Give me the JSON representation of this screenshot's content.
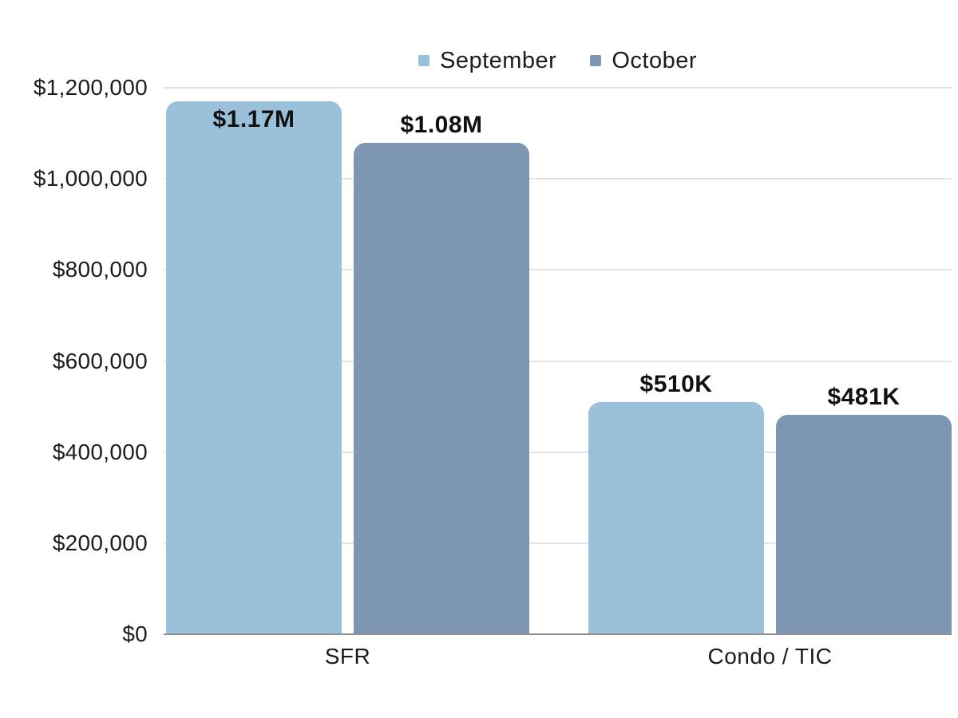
{
  "chart_data": {
    "type": "bar",
    "title": "",
    "categories": [
      "SFR",
      "Condo / TIC"
    ],
    "series": [
      {
        "name": "September",
        "color": "#9ac1d9",
        "values": [
          1170000,
          510000
        ],
        "data_labels": [
          "$1.17M",
          "$510K"
        ]
      },
      {
        "name": "October",
        "color": "#7d96b3",
        "values": [
          1080000,
          481000
        ],
        "data_labels": [
          "$1.08M",
          "$481K"
        ]
      }
    ],
    "y_axis": {
      "min": 0,
      "max": 1200000,
      "ticks": [
        {
          "value": 0,
          "label": "$0"
        },
        {
          "value": 200000,
          "label": "$200,000"
        },
        {
          "value": 400000,
          "label": "$400,000"
        },
        {
          "value": 600000,
          "label": "$600,000"
        },
        {
          "value": 800000,
          "label": "$800,000"
        },
        {
          "value": 1000000,
          "label": "$1,000,000"
        },
        {
          "value": 1200000,
          "label": "$1,200,000"
        }
      ]
    },
    "legend": {
      "position": "top",
      "entries": [
        "September",
        "October"
      ]
    },
    "grid": "horizontal",
    "colors": {
      "background": "#ffffff",
      "grid_line": "#e3e3e3",
      "axis_line": "#8f8f8f",
      "tick_text": "#1c1c1c",
      "data_label_text": "#111111"
    }
  }
}
